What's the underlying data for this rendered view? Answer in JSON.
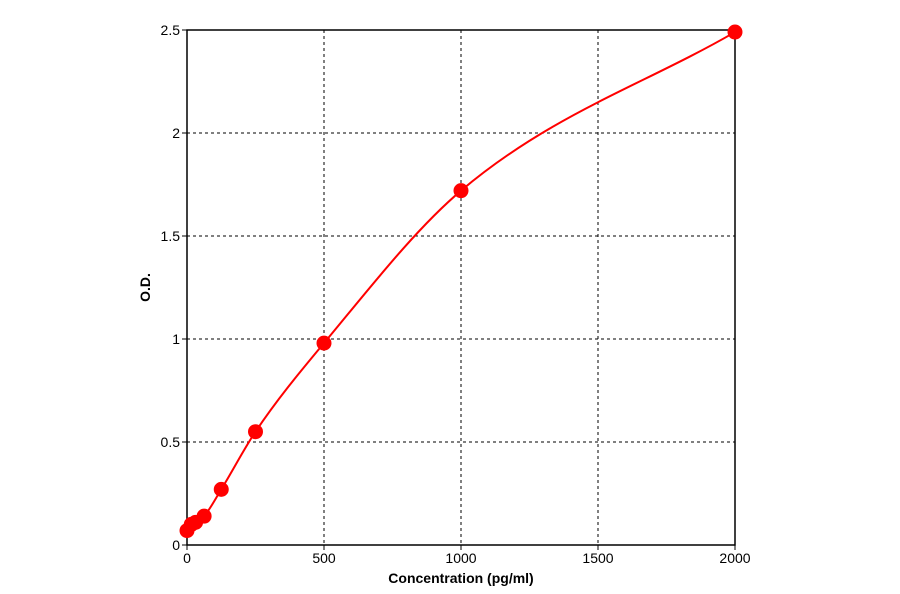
{
  "chart_data": {
    "type": "scatter",
    "title": "",
    "xlabel": "Concentration (pg/ml)",
    "ylabel": "O.D.",
    "xlim": [
      0,
      2000
    ],
    "ylim": [
      0,
      2.5
    ],
    "x_ticks": [
      0,
      500,
      1000,
      1500,
      2000
    ],
    "x_tick_labels": [
      "0",
      "500",
      "1000",
      "1500",
      "2000"
    ],
    "y_ticks": [
      0,
      0.5,
      1,
      1.5,
      2,
      2.5
    ],
    "y_tick_labels": [
      "0",
      "0.5",
      "1",
      "1.5",
      "2",
      "2.5"
    ],
    "grid": true,
    "grid_style": "dashed",
    "legend": "none",
    "series": [
      {
        "color": "#ff0000",
        "fit": "smooth-curve",
        "points": [
          {
            "x": 0,
            "y": 0.07
          },
          {
            "x": 15.6,
            "y": 0.1
          },
          {
            "x": 31.25,
            "y": 0.11
          },
          {
            "x": 62.5,
            "y": 0.14
          },
          {
            "x": 125,
            "y": 0.27
          },
          {
            "x": 250,
            "y": 0.55
          },
          {
            "x": 500,
            "y": 0.98
          },
          {
            "x": 1000,
            "y": 1.72
          },
          {
            "x": 2000,
            "y": 2.49
          }
        ]
      }
    ]
  }
}
